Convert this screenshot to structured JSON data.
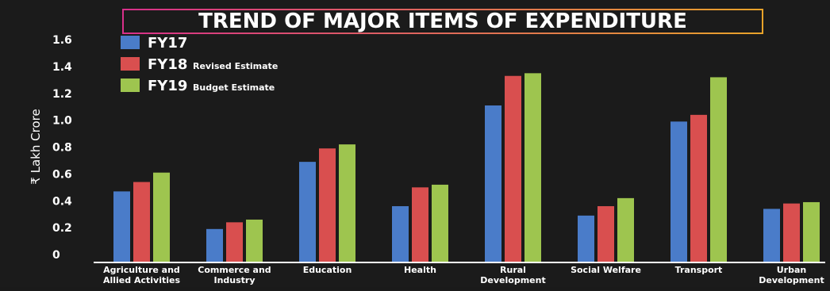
{
  "chart_data": {
    "type": "bar",
    "title": "TREND OF MAJOR ITEMS OF EXPENDITURE",
    "ylabel": "₹ Lakh Crore",
    "xlabel": "",
    "ylim": [
      0,
      1.6
    ],
    "yticks": [
      "0",
      "0.2",
      "0.4",
      "0.6",
      "0.8",
      "1.0",
      "1.2",
      "1.4",
      "1.6"
    ],
    "categories": [
      [
        "Agriculture and",
        "Allied Activities"
      ],
      [
        "Commerce and",
        "Industry"
      ],
      [
        "Education"
      ],
      [
        "Health"
      ],
      [
        "Rural",
        "Development"
      ],
      [
        "Social Welfare"
      ],
      [
        "Transport"
      ],
      [
        "Urban",
        "Development"
      ]
    ],
    "series": [
      {
        "name": "FY17",
        "note": "",
        "color": "#4a7cc9",
        "values": [
          0.47,
          0.19,
          0.69,
          0.36,
          1.11,
          0.29,
          0.99,
          0.34
        ]
      },
      {
        "name": "FY18",
        "note": "Revised Estimate",
        "color": "#d94f4f",
        "values": [
          0.54,
          0.24,
          0.79,
          0.5,
          1.33,
          0.36,
          1.04,
          0.38
        ]
      },
      {
        "name": "FY19",
        "note": "Budget Estimate",
        "color": "#9ec54f",
        "values": [
          0.61,
          0.26,
          0.82,
          0.52,
          1.35,
          0.42,
          1.32,
          0.39
        ]
      }
    ],
    "legend_position": "top-left",
    "grid": false
  },
  "colors": {
    "background": "#1b1b1b",
    "text": "#ffffff",
    "axis": "#ffffff",
    "title_border_left": "#d8308a",
    "title_border_right": "#e8a32a"
  }
}
